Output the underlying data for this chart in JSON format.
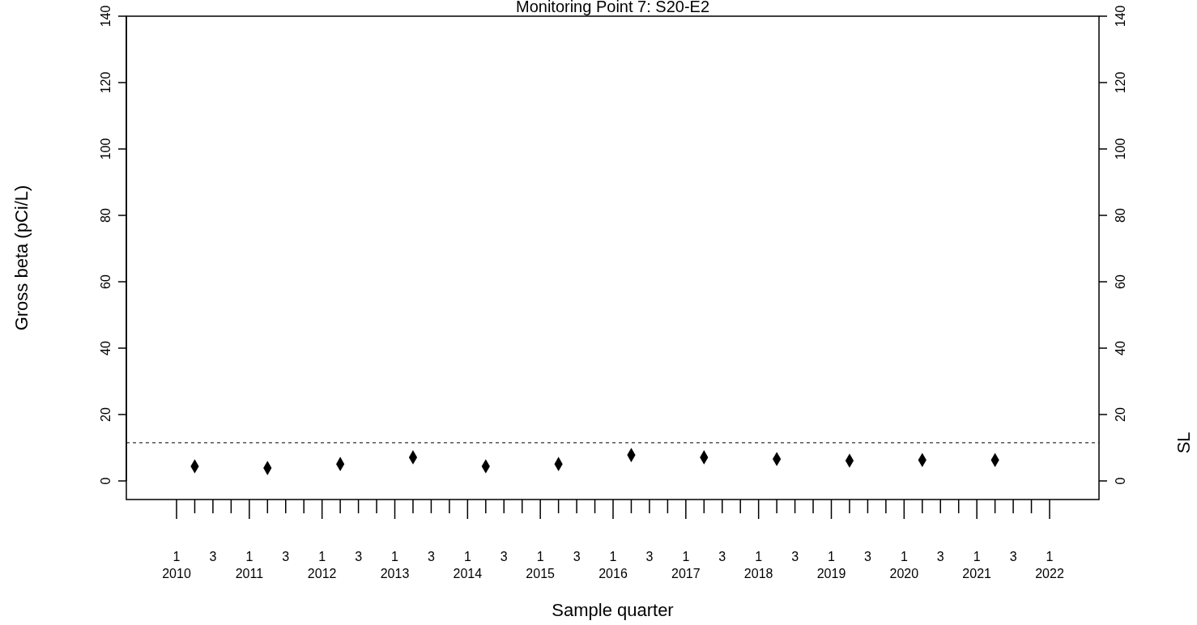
{
  "chart_data": {
    "type": "scatter",
    "title": "Monitoring Point 7: S20-E2",
    "xlabel": "Sample quarter",
    "ylabel": "Gross beta (pCi/L)",
    "categories": [
      "1\n2010",
      null,
      "3",
      null,
      "1\n2011",
      null,
      "3",
      null,
      "1\n2012",
      null,
      "3",
      null,
      "1\n2013",
      null,
      "3",
      null,
      "1\n2014",
      null,
      "3",
      null,
      "1\n2015",
      null,
      "3",
      null,
      "1\n2016",
      null,
      "3",
      null,
      "1\n2017",
      null,
      "3",
      null,
      "1\n2018",
      null,
      "3",
      null,
      "1\n2019",
      null,
      "3",
      null,
      "1\n2020",
      null,
      "3",
      null,
      "1\n2021",
      null,
      "3",
      null,
      "1\n2022"
    ],
    "series": [
      {
        "color": "#000000",
        "values": [
          null,
          4.4,
          null,
          null,
          null,
          3.9,
          null,
          null,
          null,
          5.1,
          null,
          null,
          null,
          7.1,
          null,
          null,
          null,
          4.4,
          null,
          null,
          null,
          5.1,
          null,
          null,
          null,
          7.8,
          null,
          null,
          null,
          7.1,
          null,
          null,
          null,
          6.6,
          null,
          null,
          null,
          6.1,
          null,
          null,
          null,
          6.3,
          null,
          null,
          null,
          6.3,
          null,
          null,
          null
        ]
      }
    ],
    "marker": "diamond",
    "grid": false,
    "ylim": [
      -5.6,
      140
    ],
    "yticks": [
      0,
      20,
      40,
      60,
      80,
      100,
      120,
      140
    ],
    "y2lim": [
      -5.6,
      140
    ],
    "y2ticks": [
      0,
      20,
      40,
      60,
      80,
      100,
      120,
      140
    ],
    "ref_lines": [
      {
        "axis": "y",
        "value": 11.5,
        "label": "SL",
        "color": "#000000",
        "line_style": "dashed"
      }
    ]
  }
}
